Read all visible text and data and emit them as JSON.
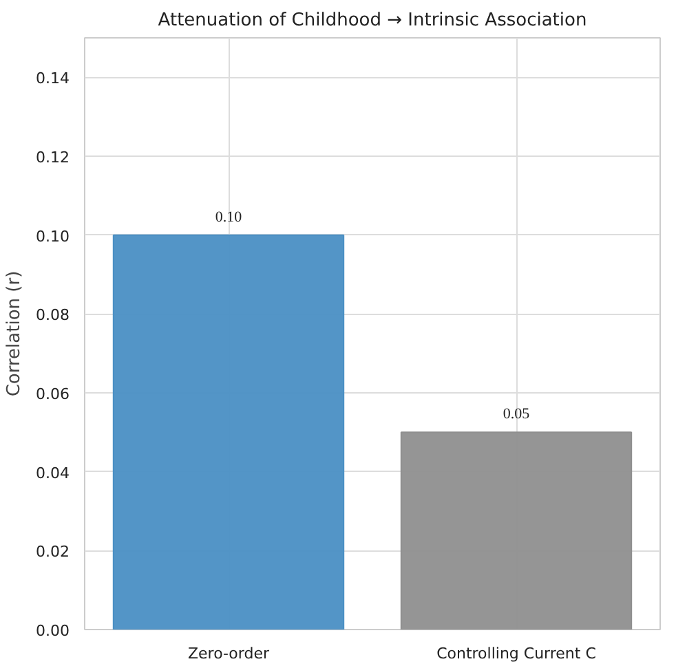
{
  "chart_data": {
    "type": "bar",
    "title": "Attenuation of Childhood → Intrinsic Association",
    "ylabel": "Correlation (r)",
    "categories": [
      "Zero-order",
      "Controlling Current C"
    ],
    "values": [
      0.1,
      0.05
    ],
    "colors": [
      "#4a8fc4",
      "#8f8f8f"
    ],
    "value_labels": [
      "0.10",
      "0.05"
    ],
    "ylim": [
      0,
      0.15
    ],
    "yticks": [
      "0.00",
      "0.02",
      "0.04",
      "0.06",
      "0.08",
      "0.10",
      "0.12",
      "0.14"
    ],
    "grid": true
  }
}
